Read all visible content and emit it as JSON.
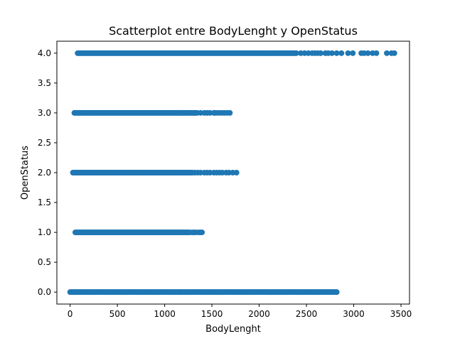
{
  "chart_data": {
    "type": "scatter",
    "title": "Scatterplot entre BodyLenght y OpenStatus",
    "xlabel": "BodyLenght",
    "ylabel": "OpenStatus",
    "xlim": [
      -140,
      3590
    ],
    "ylim": [
      -0.2,
      4.2
    ],
    "xticks": [
      0,
      500,
      1000,
      1500,
      2000,
      2500,
      3000,
      3500
    ],
    "yticks": [
      0.0,
      0.5,
      1.0,
      1.5,
      2.0,
      2.5,
      3.0,
      3.5,
      4.0
    ],
    "ytick_labels": [
      "0.0",
      "0.5",
      "1.0",
      "1.5",
      "2.0",
      "2.5",
      "3.0",
      "3.5",
      "4.0"
    ],
    "grid": false,
    "marker_color": "#1f77b4",
    "series": [
      {
        "values": [
          {
            "y": 0,
            "dense_from": 0,
            "dense_to": 2830,
            "sparse": []
          },
          {
            "y": 1,
            "dense_from": 55,
            "dense_to": 1270,
            "sparse": [
              1290,
              1310,
              1330,
              1360,
              1380,
              1395
            ]
          },
          {
            "y": 2,
            "dense_from": 30,
            "dense_to": 1300,
            "sparse": [
              1320,
              1350,
              1380,
              1420,
              1450,
              1480,
              1520,
              1550,
              1580,
              1610,
              1650,
              1680,
              1720,
              1760
            ]
          },
          {
            "y": 3,
            "dense_from": 45,
            "dense_to": 1350,
            "sparse": [
              1380,
              1420,
              1450,
              1480,
              1520,
              1540,
              1570,
              1600,
              1630,
              1660,
              1690
            ]
          },
          {
            "y": 4,
            "dense_from": 80,
            "dense_to": 2400,
            "sparse": [
              2440,
              2480,
              2520,
              2560,
              2590,
              2620,
              2650,
              2700,
              2730,
              2770,
              2820,
              2870,
              2940,
              2990,
              3080,
              3110,
              3150,
              3200,
              3240,
              3350,
              3400,
              3430
            ]
          }
        ]
      }
    ]
  }
}
